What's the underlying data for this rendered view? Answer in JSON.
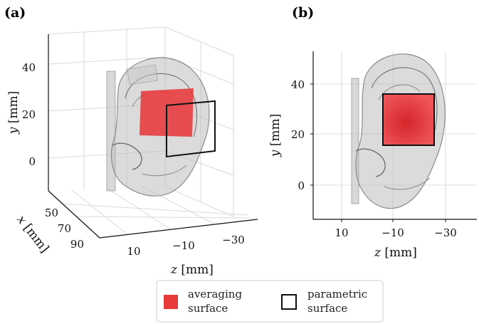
{
  "panels": [
    {
      "label": "(a)",
      "y_axis": {
        "label_var": "y",
        "label_unit": "[mm]",
        "ticks": [
          "40",
          "20",
          "0"
        ]
      },
      "x_axis": {
        "label_var": "x",
        "label_unit": "[mm]",
        "ticks": [
          "50",
          "70",
          "90"
        ]
      },
      "z_axis": {
        "label_var": "z",
        "label_unit": "[mm]",
        "ticks": [
          "10",
          "−10",
          "−30"
        ]
      }
    },
    {
      "label": "(b)",
      "y_axis": {
        "label_var": "y",
        "label_unit": "[mm]",
        "ticks": [
          "40",
          "20",
          "0"
        ]
      },
      "z_axis": {
        "label_var": "z",
        "label_unit": "[mm]",
        "ticks": [
          "10",
          "−10",
          "−30"
        ]
      }
    }
  ],
  "legend": {
    "items": [
      {
        "label_line1": "averaging",
        "label_line2": "surface",
        "color": "#e8393b"
      },
      {
        "label_line1": "parametric",
        "label_line2": "surface",
        "color": "#111111"
      }
    ]
  },
  "colors": {
    "averaging": "#e8393b",
    "parametric": "#111111",
    "ear": "#9a9a9a",
    "grid": "#d9d9d9"
  }
}
